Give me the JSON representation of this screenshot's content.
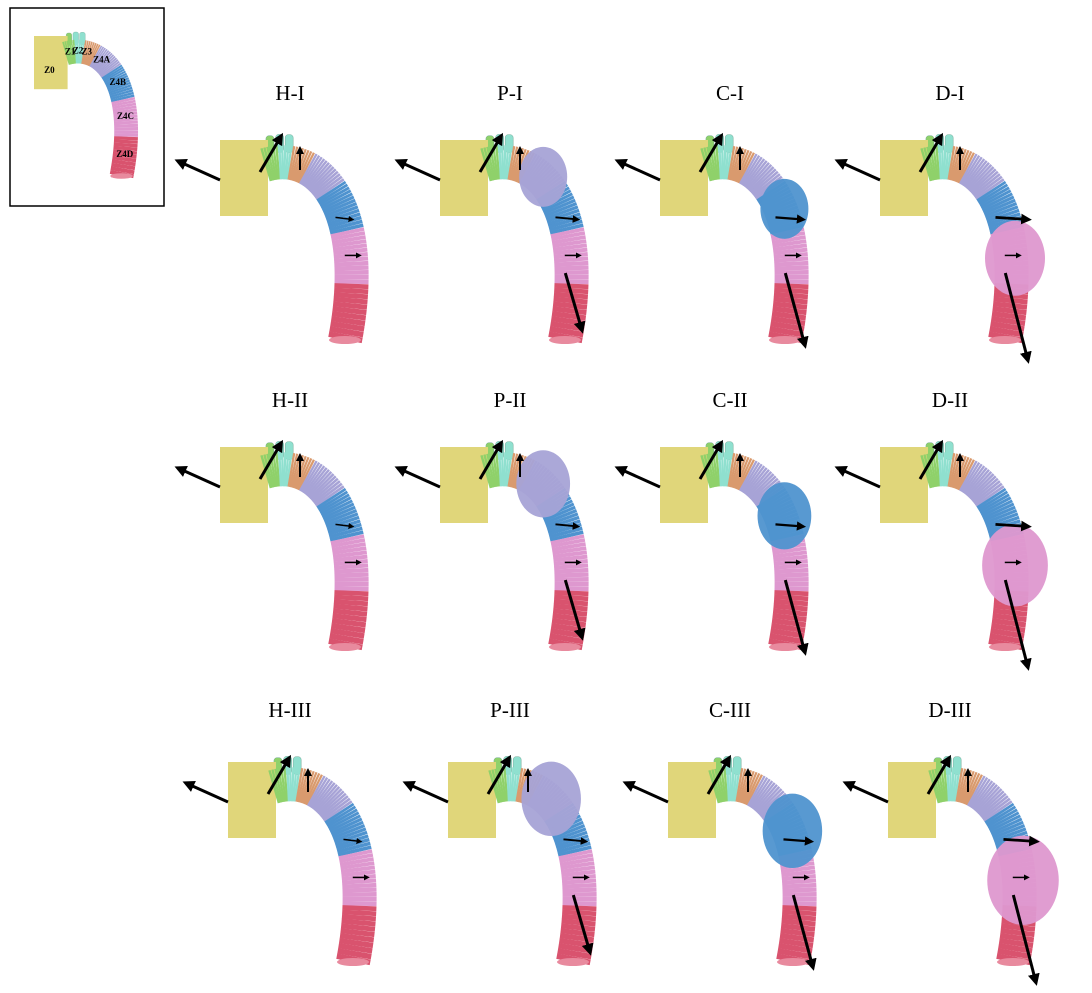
{
  "inset": {
    "labels": [
      "Z0",
      "Z1",
      "Z2",
      "Z3",
      "Z4A",
      "Z4B",
      "Z4C",
      "Z4D"
    ]
  },
  "panels": [
    {
      "title": "H-I"
    },
    {
      "title": "P-I"
    },
    {
      "title": "C-I"
    },
    {
      "title": "D-I"
    },
    {
      "title": "H-II"
    },
    {
      "title": "P-II"
    },
    {
      "title": "C-II"
    },
    {
      "title": "D-II"
    },
    {
      "title": "H-III"
    },
    {
      "title": "P-III"
    },
    {
      "title": "C-III"
    },
    {
      "title": "D-III"
    }
  ]
}
